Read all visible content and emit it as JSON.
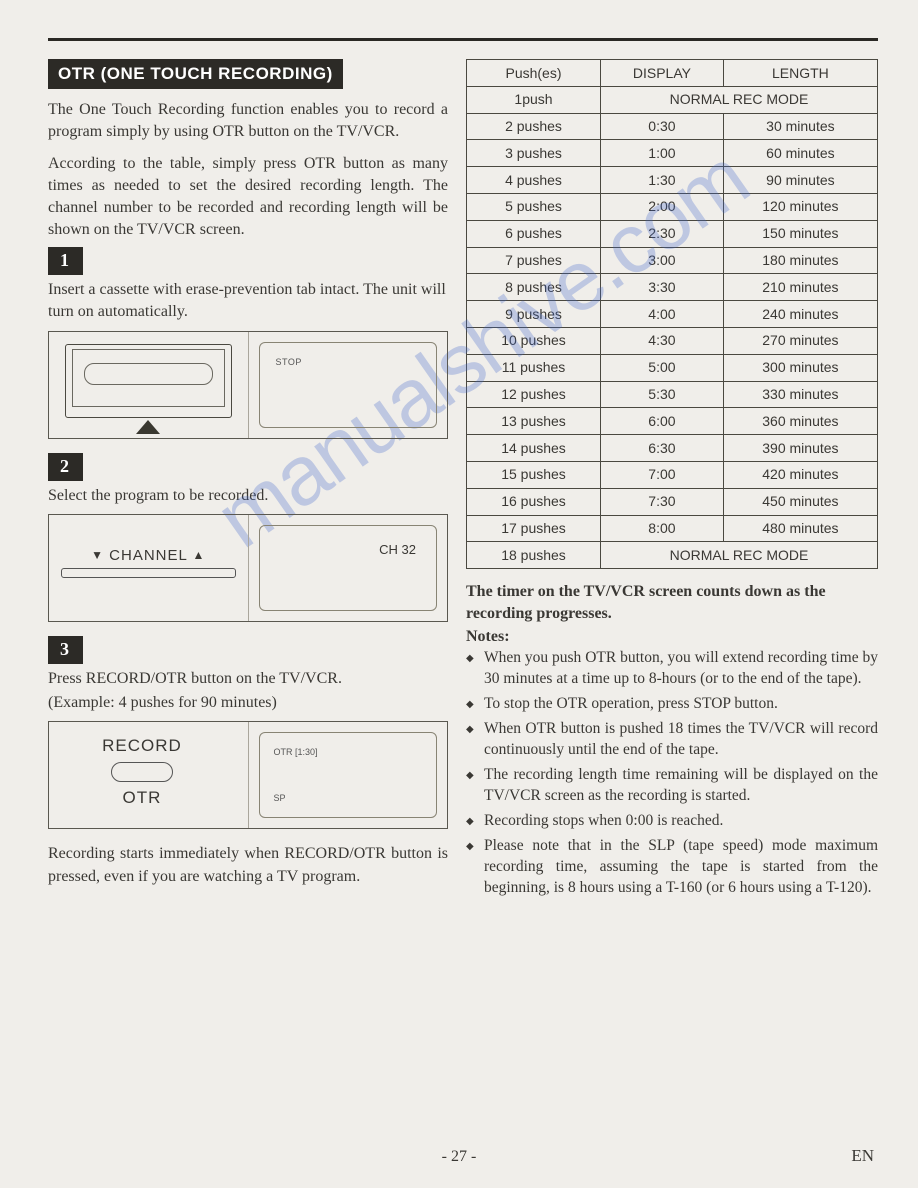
{
  "watermark": "manualshive.com",
  "header_title": "OTR (ONE TOUCH RECORDING)",
  "intro_p1": "The One Touch Recording function enables you to record a program simply by using OTR button on the TV/VCR.",
  "intro_p2": "According to the table, simply press OTR button as many times as needed to set the desired recording length. The channel number to be recorded and recording length will be shown on the TV/VCR screen.",
  "steps": {
    "s1": {
      "num": "1",
      "text": "Insert a cassette with erase-prevention tab intact. The unit will turn on automatically."
    },
    "s2": {
      "num": "2",
      "text": "Select the program to be recorded."
    },
    "s3": {
      "num": "3",
      "text_a": "Press RECORD/OTR button on the TV/VCR.",
      "text_b": "(Example: 4 pushes for 90 minutes)"
    }
  },
  "fig1": {
    "stop": "STOP"
  },
  "fig2": {
    "channel": "CHANNEL",
    "ch": "CH 32"
  },
  "fig3": {
    "record": "RECORD",
    "otr": "OTR",
    "screen_otr": "OTR [1:30]",
    "sp": "SP"
  },
  "post_s3": "Recording starts immediately when RE­CORD/OTR button is pressed, even if you are watching a TV program.",
  "table": {
    "headers": {
      "push": "Push(es)",
      "display": "DISPLAY",
      "length": "LENGTH"
    },
    "normal_mode": "NORMAL REC MODE",
    "rows": [
      {
        "push": "1push",
        "span": true
      },
      {
        "push": "2 pushes",
        "display": "0:30",
        "length": "30 minutes"
      },
      {
        "push": "3 pushes",
        "display": "1:00",
        "length": "60 minutes"
      },
      {
        "push": "4 pushes",
        "display": "1:30",
        "length": "90 minutes"
      },
      {
        "push": "5 pushes",
        "display": "2:00",
        "length": "120 minutes"
      },
      {
        "push": "6 pushes",
        "display": "2:30",
        "length": "150 minutes"
      },
      {
        "push": "7 pushes",
        "display": "3:00",
        "length": "180 minutes"
      },
      {
        "push": "8 pushes",
        "display": "3:30",
        "length": "210 minutes"
      },
      {
        "push": "9 pushes",
        "display": "4:00",
        "length": "240 minutes"
      },
      {
        "push": "10 pushes",
        "display": "4:30",
        "length": "270 minutes"
      },
      {
        "push": "11 pushes",
        "display": "5:00",
        "length": "300 minutes"
      },
      {
        "push": "12 pushes",
        "display": "5:30",
        "length": "330 minutes"
      },
      {
        "push": "13 pushes",
        "display": "6:00",
        "length": "360 minutes"
      },
      {
        "push": "14 pushes",
        "display": "6:30",
        "length": "390 minutes"
      },
      {
        "push": "15 pushes",
        "display": "7:00",
        "length": "420 minutes"
      },
      {
        "push": "16 pushes",
        "display": "7:30",
        "length": "450 minutes"
      },
      {
        "push": "17 pushes",
        "display": "8:00",
        "length": "480 minutes"
      },
      {
        "push": "18 pushes",
        "span": true
      }
    ]
  },
  "timer_line": "The timer on the TV/VCR screen counts down as the recording progresses.",
  "notes_header": "Notes:",
  "notes": [
    "When you push OTR button, you will extend recording time by 30 minutes at a time up to 8-hours (or to the end of the tape).",
    "To stop the OTR operation, press STOP button.",
    "When OTR button is pushed 18 times the TV/VCR will record continuously until the end of the tape.",
    "The recording length time remaining will be displayed on the TV/VCR screen as the recording is started.",
    "Recording stops when 0:00 is reached.",
    "Please note that in the SLP (tape speed) mode maximum recording time, assuming the tape is started from the beginning, is 8 hours using a T-160 (or 6 hours using a T-120)."
  ],
  "page_num": "- 27 -",
  "lang": "EN"
}
